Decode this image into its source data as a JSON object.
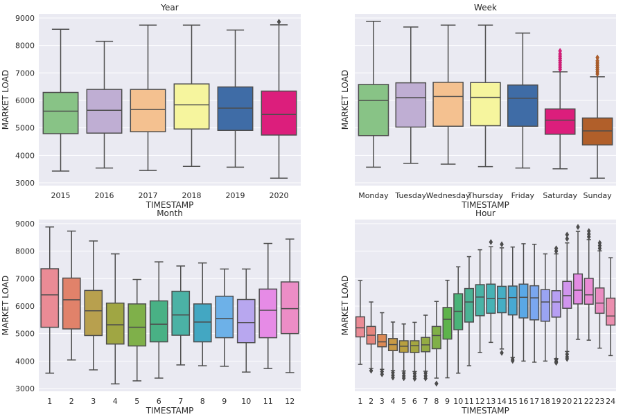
{
  "chart_data": [
    {
      "type": "box",
      "title": "Year",
      "xlabel": "TIMESTAMP",
      "ylabel": "MARKET LOAD",
      "ylim": [
        2900,
        9150
      ],
      "yticks": [
        3000,
        4000,
        5000,
        6000,
        7000,
        8000,
        9000
      ],
      "show_yticklabels": true,
      "categories": [
        "2015",
        "2016",
        "2017",
        "2018",
        "2019",
        "2020"
      ],
      "colors": [
        "#88c386",
        "#bfaed3",
        "#f4c190",
        "#f6f59e",
        "#3f6ca6",
        "#dc1e7c"
      ],
      "boxes": [
        {
          "whislo": 3430,
          "q1": 4790,
          "med": 5610,
          "q3": 6290,
          "whishi": 8590,
          "fliers": []
        },
        {
          "whislo": 3540,
          "q1": 4810,
          "med": 5640,
          "q3": 6400,
          "whishi": 8150,
          "fliers": []
        },
        {
          "whislo": 3450,
          "q1": 4860,
          "med": 5670,
          "q3": 6400,
          "whishi": 8740,
          "fliers": []
        },
        {
          "whislo": 3600,
          "q1": 4960,
          "med": 5840,
          "q3": 6600,
          "whishi": 8740,
          "fliers": []
        },
        {
          "whislo": 3570,
          "q1": 4910,
          "med": 5720,
          "q3": 6490,
          "whishi": 8560,
          "fliers": []
        },
        {
          "whislo": 3170,
          "q1": 4740,
          "med": 5490,
          "q3": 6340,
          "whishi": 8750,
          "fliers": [
            8860
          ]
        }
      ]
    },
    {
      "type": "box",
      "title": "Week",
      "xlabel": "TIMESTAMP",
      "ylabel": "MARKET LOAD",
      "ylim": [
        2900,
        9150
      ],
      "yticks": [
        3000,
        4000,
        5000,
        6000,
        7000,
        8000,
        9000
      ],
      "show_yticklabels": false,
      "categories": [
        "Monday",
        "Tuesday",
        "Wednesday",
        "Thursday",
        "Friday",
        "Saturday",
        "Sunday"
      ],
      "colors": [
        "#88c386",
        "#bfaed3",
        "#f4c190",
        "#f6f59e",
        "#3f6ca6",
        "#dc1e7c",
        "#b15f2a"
      ],
      "boxes": [
        {
          "whislo": 3570,
          "q1": 4720,
          "med": 6000,
          "q3": 6580,
          "whishi": 8880,
          "fliers": []
        },
        {
          "whislo": 3710,
          "q1": 5030,
          "med": 6100,
          "q3": 6640,
          "whishi": 8670,
          "fliers": []
        },
        {
          "whislo": 3680,
          "q1": 5060,
          "med": 6140,
          "q3": 6660,
          "whishi": 8740,
          "fliers": []
        },
        {
          "whislo": 3590,
          "q1": 5080,
          "med": 6110,
          "q3": 6650,
          "whishi": 8740,
          "fliers": []
        },
        {
          "whislo": 3540,
          "q1": 5060,
          "med": 6080,
          "q3": 6560,
          "whishi": 8450,
          "fliers": []
        },
        {
          "whislo": 3510,
          "q1": 4770,
          "med": 5280,
          "q3": 5690,
          "whishi": 7040,
          "fliers": [
            7130,
            7210,
            7290,
            7370,
            7450,
            7530,
            7610,
            7690,
            7800
          ]
        },
        {
          "whislo": 3170,
          "q1": 4380,
          "med": 4890,
          "q3": 5360,
          "whishi": 6860,
          "fliers": [
            6960,
            7040,
            7120,
            7200,
            7280,
            7360,
            7440,
            7560
          ]
        }
      ]
    },
    {
      "type": "box",
      "title": "Month",
      "xlabel": "TIMESTAMP",
      "ylabel": "MARKET LOAD",
      "ylim": [
        2900,
        9150
      ],
      "yticks": [
        3000,
        4000,
        5000,
        6000,
        7000,
        8000,
        9000
      ],
      "show_yticklabels": true,
      "categories": [
        "1",
        "2",
        "3",
        "4",
        "5",
        "6",
        "7",
        "8",
        "9",
        "10",
        "11",
        "12"
      ],
      "colors": [
        "#ea8b95",
        "#e1826a",
        "#b8a04e",
        "#a0a643",
        "#7fb04a",
        "#49b185",
        "#4bb2a5",
        "#43a7c2",
        "#6db1e8",
        "#b8a7ef",
        "#e68be6",
        "#ec8dc6"
      ],
      "boxes": [
        {
          "whislo": 3560,
          "q1": 5230,
          "med": 6410,
          "q3": 7360,
          "whishi": 8880,
          "fliers": []
        },
        {
          "whislo": 4040,
          "q1": 5170,
          "med": 6230,
          "q3": 7020,
          "whishi": 8730,
          "fliers": []
        },
        {
          "whislo": 3680,
          "q1": 4930,
          "med": 5830,
          "q3": 6570,
          "whishi": 8370,
          "fliers": []
        },
        {
          "whislo": 3170,
          "q1": 4620,
          "med": 5320,
          "q3": 6110,
          "whishi": 7900,
          "fliers": []
        },
        {
          "whislo": 3280,
          "q1": 4550,
          "med": 5230,
          "q3": 6080,
          "whishi": 6970,
          "fliers": []
        },
        {
          "whislo": 3380,
          "q1": 4700,
          "med": 5340,
          "q3": 6190,
          "whishi": 7610,
          "fliers": []
        },
        {
          "whislo": 3860,
          "q1": 4940,
          "med": 5680,
          "q3": 6540,
          "whishi": 7460,
          "fliers": []
        },
        {
          "whislo": 3830,
          "q1": 4700,
          "med": 5420,
          "q3": 6080,
          "whishi": 7570,
          "fliers": []
        },
        {
          "whislo": 3810,
          "q1": 4850,
          "med": 5550,
          "q3": 6360,
          "whishi": 7350,
          "fliers": []
        },
        {
          "whislo": 3600,
          "q1": 4670,
          "med": 5400,
          "q3": 6240,
          "whishi": 7350,
          "fliers": []
        },
        {
          "whislo": 3730,
          "q1": 4850,
          "med": 5850,
          "q3": 6620,
          "whishi": 8280,
          "fliers": []
        },
        {
          "whislo": 3580,
          "q1": 5000,
          "med": 5910,
          "q3": 6880,
          "whishi": 8440,
          "fliers": []
        }
      ]
    },
    {
      "type": "box",
      "title": "Hour",
      "xlabel": "TIMESTAMP",
      "ylabel": "MARKET LOAD",
      "ylim": [
        2900,
        9150
      ],
      "yticks": [
        3000,
        4000,
        5000,
        6000,
        7000,
        8000,
        9000
      ],
      "show_yticklabels": false,
      "categories": [
        "1",
        "2",
        "3",
        "4",
        "5",
        "6",
        "7",
        "8",
        "9",
        "10",
        "11",
        "12",
        "13",
        "14",
        "15",
        "16",
        "17",
        "18",
        "19",
        "20",
        "21",
        "22",
        "23",
        "24"
      ],
      "colors": [
        "#ea8b95",
        "#e6857d",
        "#dd8a55",
        "#c89a45",
        "#b8a03f",
        "#a5a641",
        "#94ab44",
        "#80b048",
        "#5db34b",
        "#4ab379",
        "#4bb395",
        "#4ab3a6",
        "#48b2b5",
        "#46aec4",
        "#48a9d4",
        "#5aa8e6",
        "#7aa7f0",
        "#9aa4f2",
        "#b79ff3",
        "#d195ee",
        "#e38be3",
        "#e98bd3",
        "#ea8cc2",
        "#eb8eae"
      ],
      "boxes": [
        {
          "whislo": 3880,
          "q1": 4880,
          "med": 5210,
          "q3": 5610,
          "whishi": 6930,
          "fliers": []
        },
        {
          "whislo": 3730,
          "q1": 4620,
          "med": 4940,
          "q3": 5260,
          "whishi": 6150,
          "fliers": [
            3650
          ]
        },
        {
          "whislo": 3700,
          "q1": 4520,
          "med": 4700,
          "q3": 4970,
          "whishi": 5760,
          "fliers": [
            3620,
            3520
          ]
        },
        {
          "whislo": 3650,
          "q1": 4380,
          "med": 4600,
          "q3": 4820,
          "whishi": 5420,
          "fliers": [
            3580,
            3480,
            3400
          ]
        },
        {
          "whislo": 3640,
          "q1": 4320,
          "med": 4540,
          "q3": 4740,
          "whishi": 5350,
          "fliers": [
            3560,
            3460,
            3380
          ]
        },
        {
          "whislo": 3620,
          "q1": 4310,
          "med": 4560,
          "q3": 4740,
          "whishi": 5410,
          "fliers": [
            3550,
            3450,
            3360
          ]
        },
        {
          "whislo": 3630,
          "q1": 4340,
          "med": 4590,
          "q3": 4860,
          "whishi": 5670,
          "fliers": [
            3560,
            3460,
            3370
          ]
        },
        {
          "whislo": 3380,
          "q1": 4450,
          "med": 4930,
          "q3": 5260,
          "whishi": 6170,
          "fliers": [
            3180
          ]
        },
        {
          "whislo": 3390,
          "q1": 4800,
          "med": 5520,
          "q3": 5950,
          "whishi": 6940,
          "fliers": []
        },
        {
          "whislo": 3560,
          "q1": 5140,
          "med": 5810,
          "q3": 6450,
          "whishi": 7430,
          "fliers": []
        },
        {
          "whislo": 3830,
          "q1": 5420,
          "med": 6150,
          "q3": 6640,
          "whishi": 7800,
          "fliers": []
        },
        {
          "whislo": 4310,
          "q1": 5650,
          "med": 6330,
          "q3": 6780,
          "whishi": 8050,
          "fliers": []
        },
        {
          "whislo": 4680,
          "q1": 5740,
          "med": 6280,
          "q3": 6800,
          "whishi": 8160,
          "fliers": [
            8330
          ]
        },
        {
          "whislo": 4440,
          "q1": 5760,
          "med": 6280,
          "q3": 6720,
          "whishi": 8120,
          "fliers": [
            8250,
            4300
          ]
        },
        {
          "whislo": 4130,
          "q1": 5680,
          "med": 6310,
          "q3": 6730,
          "whishi": 8150,
          "fliers": [
            4070,
            4010
          ]
        },
        {
          "whislo": 4000,
          "q1": 5570,
          "med": 6320,
          "q3": 6800,
          "whishi": 8270,
          "fliers": []
        },
        {
          "whislo": 3960,
          "q1": 5500,
          "med": 6300,
          "q3": 6740,
          "whishi": 8250,
          "fliers": []
        },
        {
          "whislo": 4000,
          "q1": 5450,
          "med": 6150,
          "q3": 6600,
          "whishi": 7900,
          "fliers": []
        },
        {
          "whislo": 4090,
          "q1": 5600,
          "med": 6150,
          "q3": 6560,
          "whishi": 7900,
          "fliers": [
            4050,
            3980,
            3940,
            8000,
            8100
          ]
        },
        {
          "whislo": 4350,
          "q1": 5920,
          "med": 6380,
          "q3": 6900,
          "whishi": 8300,
          "fliers": [
            4250,
            4150,
            4080,
            8450,
            8600
          ]
        },
        {
          "whislo": 4790,
          "q1": 6080,
          "med": 6580,
          "q3": 7170,
          "whishi": 8720,
          "fliers": [
            8880
          ]
        },
        {
          "whislo": 4760,
          "q1": 6070,
          "med": 6410,
          "q3": 7010,
          "whishi": 8420,
          "fliers": [
            8520,
            8620,
            8730
          ]
        },
        {
          "whislo": 4470,
          "q1": 5740,
          "med": 6110,
          "q3": 6660,
          "whishi": 8010,
          "fliers": [
            8100,
            8200,
            8300
          ]
        },
        {
          "whislo": 4200,
          "q1": 5310,
          "med": 5640,
          "q3": 6290,
          "whishi": 7760,
          "fliers": []
        }
      ]
    }
  ]
}
